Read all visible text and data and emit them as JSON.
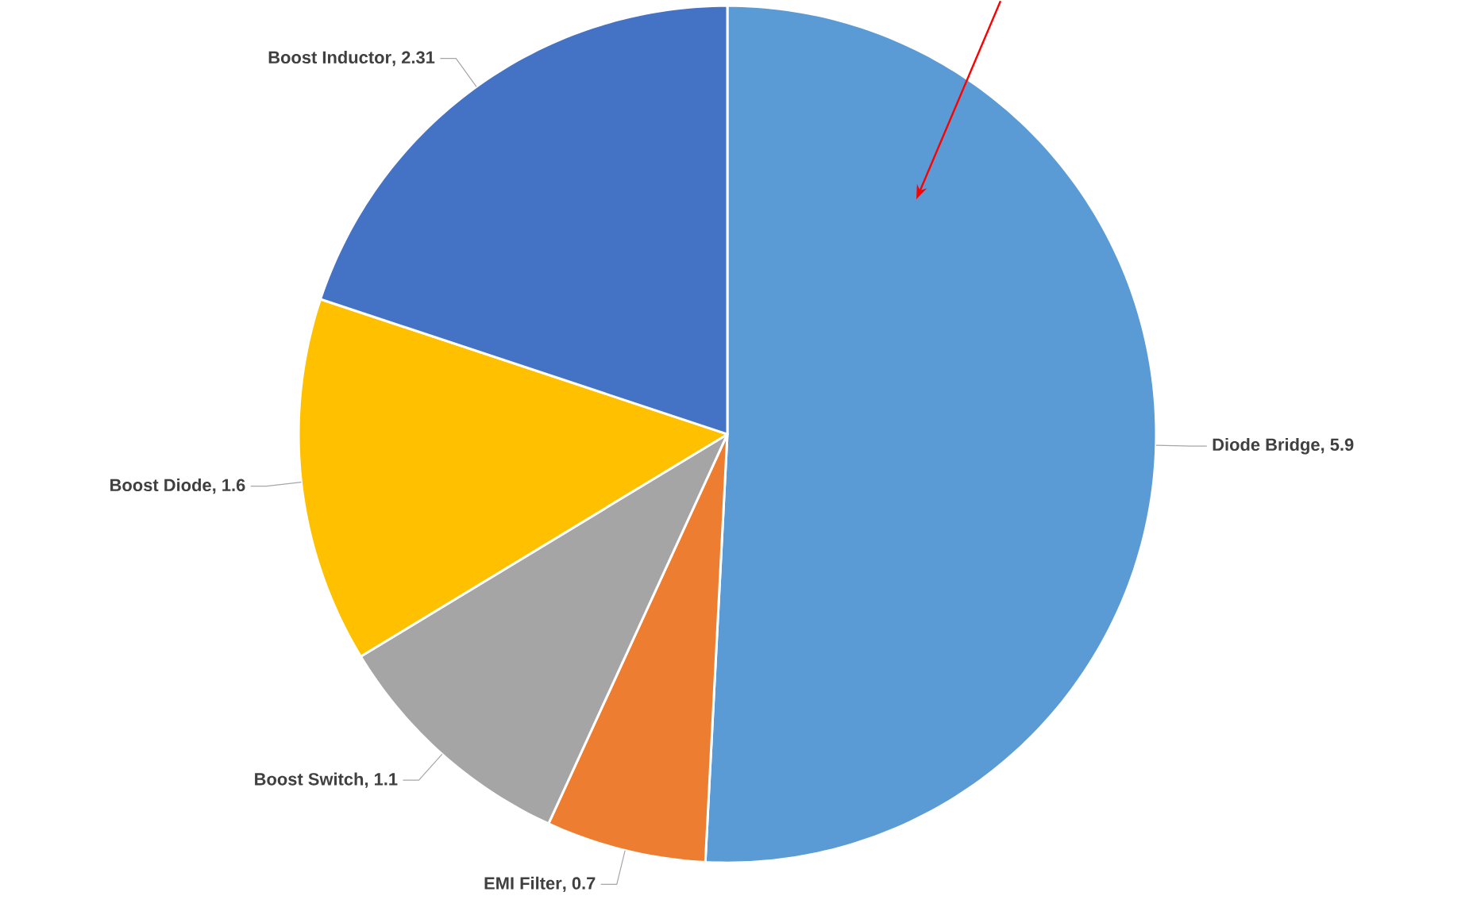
{
  "chart_data": {
    "type": "pie",
    "categories": [
      "Diode Bridge",
      "EMI Filter",
      "Boost Switch",
      "Boost Diode",
      "Boost Inductor"
    ],
    "values": [
      5.9,
      0.7,
      1.1,
      1.6,
      2.31
    ],
    "colors": [
      "#5b9bd5",
      "#ed7d31",
      "#a5a5a5",
      "#ffc000",
      "#4472c4"
    ],
    "value_labels": [
      ", 5.9",
      ", 0.7",
      ", 1.1",
      ", 1.6",
      ", 2.31"
    ]
  }
}
